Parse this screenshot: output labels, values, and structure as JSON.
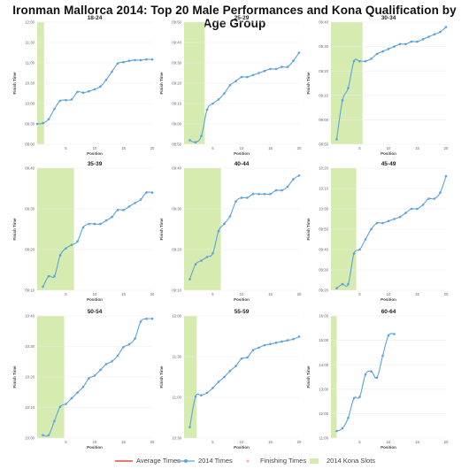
{
  "title": "Ironman Mallorca 2014: Top 20 Male Performances and Kona Qualification by Age Group",
  "legend": [
    {
      "label": "Average Times",
      "color": "#e8493a",
      "kind": "line"
    },
    {
      "label": "2014 Times",
      "color": "#5ba3d9",
      "kind": "line-dot"
    },
    {
      "label": "Finishing Times",
      "color": "#f4b6b6",
      "kind": "dot"
    },
    {
      "label": "2014 Kona Slots",
      "color": "#d6ebb0",
      "kind": "box"
    }
  ],
  "chart_data": [
    {
      "type": "line",
      "title": "18-24",
      "xlabel": "Position",
      "ylabel": "Finish Time",
      "y_ticks": [
        "09:00",
        "09:30",
        "10:00",
        "10:30",
        "11:00",
        "11:30",
        "12:00"
      ],
      "ylim": [
        540,
        720
      ],
      "x_ticks": [
        5,
        10,
        15,
        20
      ],
      "xlim": [
        0,
        20
      ],
      "kona_slots": 1.2,
      "series": [
        {
          "x": [
            0,
            1,
            2,
            3,
            4,
            5,
            6,
            7,
            8,
            9,
            10,
            11,
            12,
            13,
            14,
            15,
            16,
            17,
            18,
            19,
            20
          ],
          "values": [
            570,
            571,
            577,
            592,
            604,
            605,
            606,
            617,
            616,
            618,
            621,
            625,
            635,
            647,
            659,
            661,
            663,
            664,
            664,
            665,
            665
          ]
        }
      ]
    },
    {
      "type": "line",
      "title": "25-29",
      "xlabel": "Position",
      "ylabel": "Finish Time",
      "y_ticks": [
        "08:50",
        "09:00",
        "09:10",
        "09:20",
        "09:30",
        "09:40",
        "09:50"
      ],
      "ylim": [
        530,
        590
      ],
      "x_ticks": [
        5,
        10,
        15,
        20
      ],
      "xlim": [
        0,
        20
      ],
      "kona_slots": 3.6,
      "series": [
        {
          "x": [
            1,
            2,
            3,
            4,
            5,
            6,
            7,
            8,
            9,
            10,
            11,
            12,
            13,
            14,
            15,
            16,
            17,
            18,
            19,
            20
          ],
          "values": [
            532,
            531,
            534,
            547,
            550,
            552,
            555,
            559,
            561,
            563,
            563,
            564,
            565,
            566,
            567,
            567,
            568,
            568,
            571,
            575
          ]
        }
      ]
    },
    {
      "type": "line",
      "title": "30-34",
      "xlabel": "Position",
      "ylabel": "Finish Time",
      "y_ticks": [
        "08:50",
        "09:00",
        "09:10",
        "09:20",
        "09:30",
        "09:40"
      ],
      "ylim": [
        530,
        580
      ],
      "x_ticks": [
        5,
        10,
        15,
        20
      ],
      "xlim": [
        0,
        20
      ],
      "kona_slots": 5.5,
      "series": [
        {
          "x": [
            1,
            2,
            3,
            4,
            5,
            6,
            7,
            8,
            9,
            10,
            11,
            12,
            13,
            14,
            15,
            16,
            17,
            18,
            19,
            20
          ],
          "values": [
            532,
            548,
            553,
            564,
            564,
            564,
            565,
            567,
            568,
            569,
            570,
            571,
            571,
            572,
            572,
            573,
            574,
            575,
            576,
            578
          ]
        }
      ]
    },
    {
      "type": "line",
      "title": "35-39",
      "xlabel": "Position",
      "ylabel": "Finish Time",
      "y_ticks": [
        "09:10",
        "09:20",
        "09:30",
        "09:40"
      ],
      "ylim": [
        545,
        580
      ],
      "x_ticks": [
        5,
        10,
        15,
        20
      ],
      "xlim": [
        0,
        20
      ],
      "kona_slots": 6.4,
      "series": [
        {
          "x": [
            1,
            2,
            3,
            4,
            5,
            6,
            7,
            8,
            9,
            10,
            11,
            12,
            13,
            14,
            15,
            16,
            17,
            18,
            19,
            20
          ],
          "values": [
            546,
            549,
            549,
            555,
            557,
            558,
            559,
            563,
            564,
            564,
            564,
            565,
            566,
            568,
            568,
            569,
            570,
            571,
            573,
            573
          ]
        }
      ]
    },
    {
      "type": "line",
      "title": "40-44",
      "xlabel": "Position",
      "ylabel": "Finish Time",
      "y_ticks": [
        "09:10",
        "09:20",
        "09:30",
        "09:40"
      ],
      "ylim": [
        547,
        580
      ],
      "x_ticks": [
        5,
        10,
        15,
        20
      ],
      "xlim": [
        0,
        20
      ],
      "kona_slots": 6.4,
      "series": [
        {
          "x": [
            1,
            2,
            3,
            4,
            5,
            6,
            7,
            8,
            9,
            10,
            11,
            12,
            13,
            14,
            15,
            16,
            17,
            18,
            19,
            20
          ],
          "values": [
            550,
            554,
            555,
            556,
            557,
            563,
            565,
            567,
            571,
            572,
            572,
            573,
            573,
            573,
            573,
            574,
            574,
            575,
            577,
            578
          ]
        }
      ]
    },
    {
      "type": "line",
      "title": "45-49",
      "xlabel": "Position",
      "ylabel": "Finish Time",
      "y_ticks": [
        "09:20",
        "09:30",
        "09:40",
        "09:50",
        "10:00",
        "10:10",
        "10:20"
      ],
      "ylim": [
        560,
        620
      ],
      "x_ticks": [
        5,
        10,
        15,
        20
      ],
      "xlim": [
        0,
        20
      ],
      "kona_slots": 4.4,
      "series": [
        {
          "x": [
            1,
            2,
            3,
            4,
            5,
            6,
            7,
            8,
            9,
            10,
            11,
            12,
            13,
            14,
            15,
            16,
            17,
            18,
            19,
            20
          ],
          "values": [
            561,
            563,
            563,
            578,
            580,
            585,
            590,
            593,
            593,
            594,
            595,
            596,
            598,
            600,
            600,
            602,
            605,
            605,
            608,
            616
          ]
        }
      ]
    },
    {
      "type": "line",
      "title": "50-54",
      "xlabel": "Position",
      "ylabel": "Finish Time",
      "y_ticks": [
        "10:00",
        "10:10",
        "10:20",
        "10:30",
        "10:40"
      ],
      "ylim": [
        597,
        640
      ],
      "x_ticks": [
        5,
        10,
        15,
        20
      ],
      "xlim": [
        0,
        20
      ],
      "kona_slots": 4.7,
      "series": [
        {
          "x": [
            1,
            2,
            3,
            4,
            5,
            6,
            7,
            8,
            9,
            10,
            11,
            12,
            13,
            14,
            15,
            16,
            17,
            18,
            19,
            20
          ],
          "values": [
            598,
            598,
            603,
            608,
            609,
            611,
            613,
            615,
            618,
            619,
            621,
            623,
            624,
            626,
            629,
            630,
            632,
            638,
            639,
            639
          ]
        }
      ]
    },
    {
      "type": "line",
      "title": "55-59",
      "xlabel": "Position",
      "ylabel": "Finish Time",
      "y_ticks": [
        "10:30",
        "11:00",
        "11:30",
        "12:00"
      ],
      "ylim": [
        620,
        720
      ],
      "x_ticks": [
        5,
        10,
        15,
        20
      ],
      "xlim": [
        0,
        20
      ],
      "kona_slots": 2.2,
      "series": [
        {
          "x": [
            1,
            2,
            3,
            4,
            5,
            6,
            7,
            8,
            9,
            10,
            11,
            12,
            13,
            14,
            15,
            16,
            17,
            18,
            19,
            20
          ],
          "values": [
            629,
            654,
            655,
            657,
            661,
            666,
            670,
            675,
            679,
            685,
            686,
            692,
            694,
            696,
            697,
            698,
            699,
            700,
            701,
            703
          ]
        }
      ]
    },
    {
      "type": "line",
      "title": "60-64",
      "xlabel": "Position",
      "ylabel": "Finish Time",
      "y_ticks": [
        "11:00",
        "12:00",
        "13:00",
        "14:00",
        "15:00",
        "16:00"
      ],
      "ylim": [
        640,
        990
      ],
      "x_ticks": [
        5,
        10,
        15,
        20
      ],
      "xlim": [
        0,
        20
      ],
      "kona_slots": 1.0,
      "series": [
        {
          "x": [
            1,
            2,
            3,
            4,
            5,
            6,
            7,
            8,
            9,
            10,
            11
          ],
          "values": [
            660,
            668,
            698,
            754,
            758,
            822,
            831,
            813,
            876,
            934,
            938
          ]
        }
      ]
    }
  ]
}
